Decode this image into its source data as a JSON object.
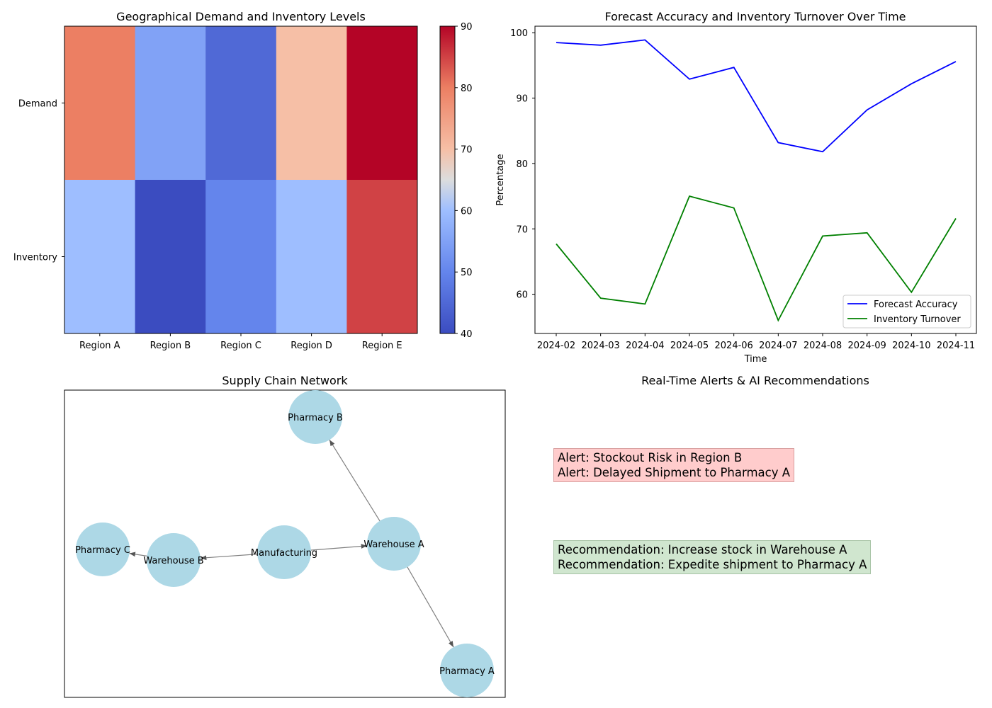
{
  "panels": {
    "heatmap_title": "Geographical Demand and Inventory Levels",
    "line_title": "Forecast Accuracy and Inventory Turnover Over Time",
    "network_title": "Supply Chain Network",
    "alerts_title": "Real-Time Alerts & AI Recommendations"
  },
  "chart_data": [
    {
      "type": "heatmap",
      "title": "Geographical Demand and Inventory Levels",
      "rows": [
        "Demand",
        "Inventory"
      ],
      "columns": [
        "Region A",
        "Region B",
        "Region C",
        "Region D",
        "Region E"
      ],
      "values": [
        [
          80,
          55,
          45,
          70,
          90
        ],
        [
          60,
          40,
          50,
          60,
          85
        ]
      ],
      "colormap": "coolwarm",
      "colorbar_range": [
        40,
        90
      ],
      "colorbar_ticks": [
        40,
        50,
        60,
        70,
        80,
        90
      ]
    },
    {
      "type": "line",
      "title": "Forecast Accuracy and Inventory Turnover Over Time",
      "xlabel": "Time",
      "ylabel": "Percentage",
      "x": [
        "2024-02",
        "2024-03",
        "2024-04",
        "2024-05",
        "2024-06",
        "2024-07",
        "2024-08",
        "2024-09",
        "2024-10",
        "2024-11"
      ],
      "ylim": [
        54,
        101
      ],
      "yticks": [
        60,
        70,
        80,
        90,
        100
      ],
      "legend": "bottom-right",
      "series": [
        {
          "name": "Forecast Accuracy",
          "color": "#0000ff",
          "values": [
            98.5,
            98.1,
            98.9,
            92.9,
            94.7,
            83.2,
            81.8,
            88.2,
            92.2,
            95.6
          ]
        },
        {
          "name": "Inventory Turnover",
          "color": "#008000",
          "values": [
            67.7,
            59.4,
            58.5,
            75.0,
            73.2,
            56.0,
            68.9,
            69.4,
            60.3,
            71.6
          ]
        }
      ]
    }
  ],
  "network": {
    "nodes": [
      "Manufacturing",
      "Warehouse A",
      "Warehouse B",
      "Pharmacy A",
      "Pharmacy B",
      "Pharmacy C"
    ],
    "edges": [
      [
        "Manufacturing",
        "Warehouse A"
      ],
      [
        "Manufacturing",
        "Warehouse B"
      ],
      [
        "Warehouse A",
        "Pharmacy A"
      ],
      [
        "Warehouse A",
        "Pharmacy B"
      ],
      [
        "Warehouse B",
        "Pharmacy C"
      ]
    ],
    "node_color": "#add8e6",
    "edge_color": "#808080"
  },
  "alerts": [
    "Alert: Stockout Risk in Region B",
    "Alert: Delayed Shipment to Pharmacy A"
  ],
  "recommendations": [
    "Recommendation: Increase stock in Warehouse A",
    "Recommendation: Expedite shipment to Pharmacy A"
  ]
}
